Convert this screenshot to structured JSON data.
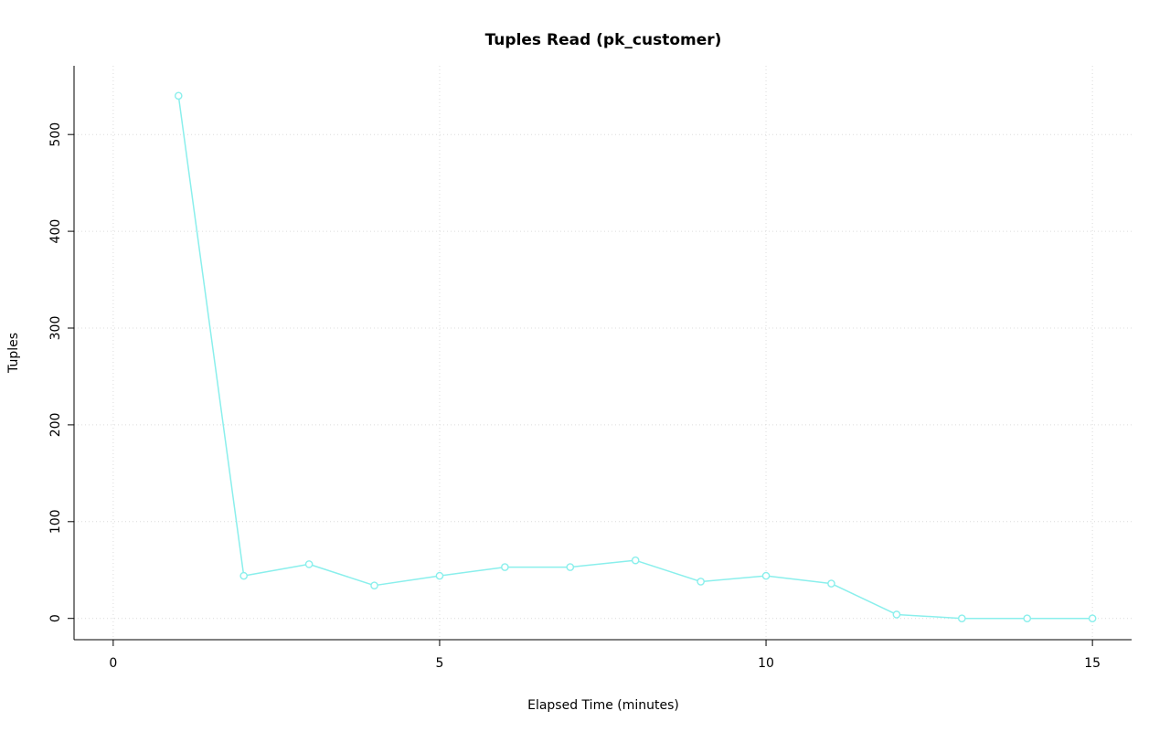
{
  "chart_data": {
    "type": "line",
    "title": "Tuples Read (pk_customer)",
    "xlabel": "Elapsed Time (minutes)",
    "ylabel": "Tuples",
    "x": [
      1,
      2,
      3,
      4,
      5,
      6,
      7,
      8,
      9,
      10,
      11,
      12,
      13,
      14,
      15
    ],
    "series": [
      {
        "color": "#8AEFEC",
        "marker": "open-circle",
        "values": [
          540,
          44,
          56,
          34,
          44,
          53,
          53,
          60,
          38,
          44,
          36,
          4,
          0,
          0,
          0
        ]
      }
    ],
    "axis": {
      "x_ticks": [
        0,
        5,
        10,
        15
      ],
      "y_ticks": [
        0,
        100,
        200,
        300,
        400,
        500
      ],
      "x_range": [
        -0.6,
        15.6
      ],
      "y_range": [
        -22,
        571
      ],
      "grid": "dotted",
      "grid_color": "#DCDCDC"
    },
    "legend": "none"
  }
}
